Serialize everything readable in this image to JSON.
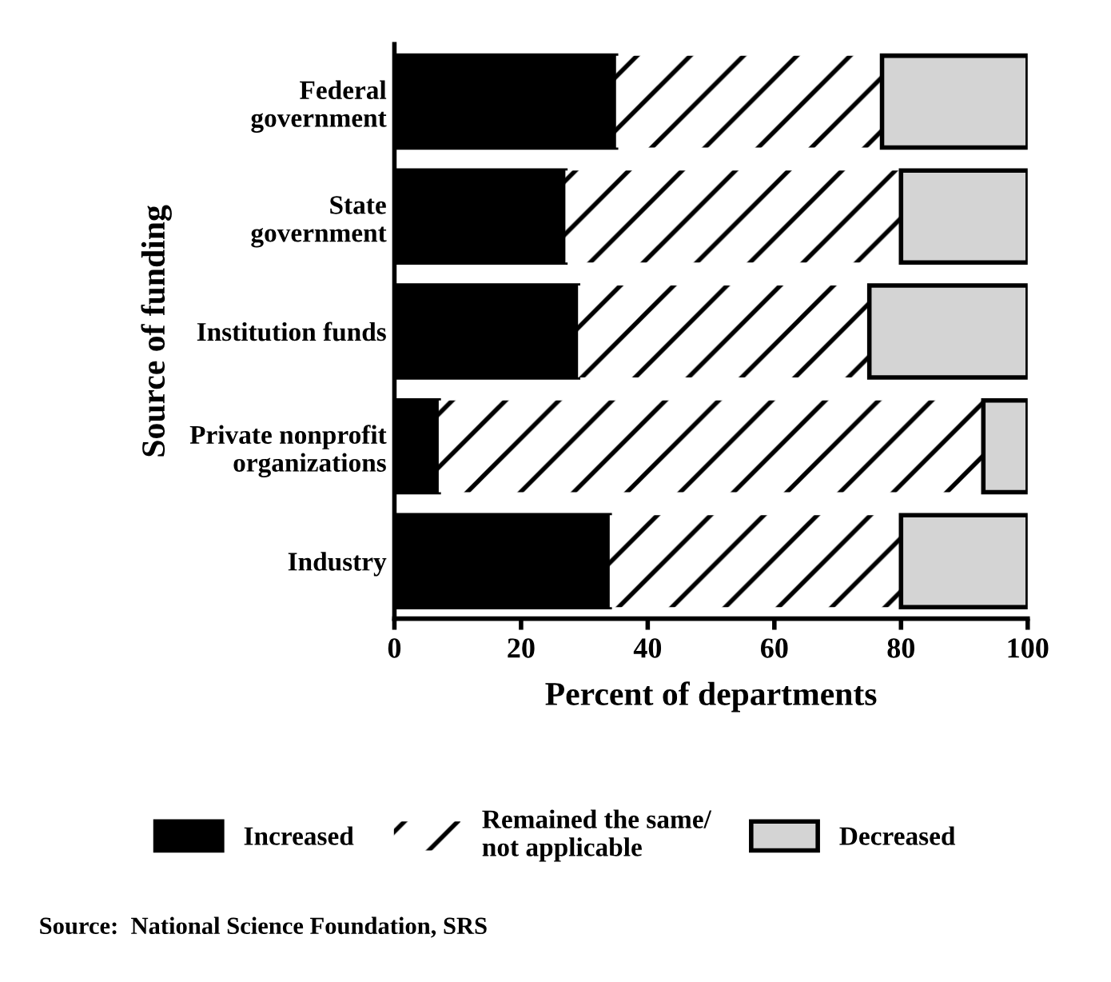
{
  "chart_data": {
    "type": "bar",
    "orientation": "horizontal",
    "stacked": true,
    "categories": [
      "Federal\ngovernment",
      "State\ngovernment",
      "Institution funds",
      "Private nonprofit\norganizations",
      "Industry"
    ],
    "series": [
      {
        "name": "Increased",
        "color": "#000000",
        "values": [
          35,
          27,
          29,
          7,
          34
        ]
      },
      {
        "name": "Remained the same/\nnot applicable",
        "color": "#ffffff",
        "values": [
          42,
          53,
          46,
          86,
          46
        ]
      },
      {
        "name": "Decreased",
        "color": "#d4d4d4",
        "values": [
          23,
          20,
          25,
          7,
          20
        ]
      }
    ],
    "xlim": [
      0,
      100
    ],
    "xticks": [
      0,
      20,
      40,
      60,
      80,
      100
    ],
    "xlabel": "Percent of departments",
    "ylabel": "Source of funding",
    "legend": "bottom",
    "grid": false,
    "annotations": [
      "Source:  National Science Foundation, SRS"
    ]
  }
}
